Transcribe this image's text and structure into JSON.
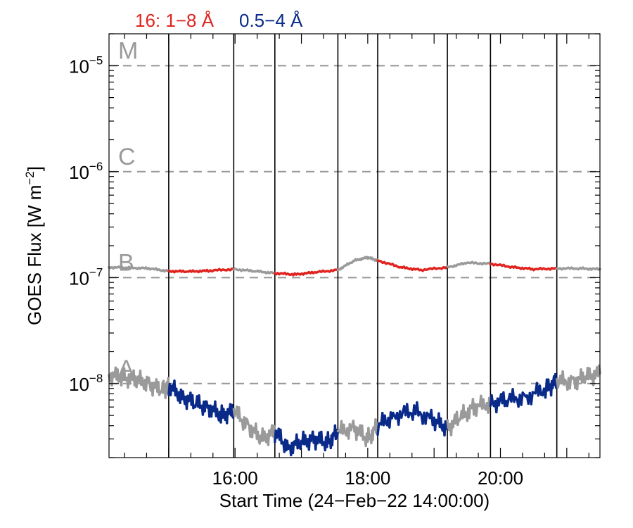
{
  "chart_data": {
    "type": "line",
    "legend": [
      {
        "label": "16: 1−8 Å",
        "color": "#e0231e"
      },
      {
        "label": "0.5−4 Å",
        "color": "#0a2a8a"
      }
    ],
    "xlabel": "Start Time (24−Feb−22 14:00:00)",
    "ylabel_main": "GOES Flux [W m",
    "ylabel_exp": "−2",
    "ylabel_close": "]",
    "y_scale": "log",
    "xlim": [
      14.1,
      21.5
    ],
    "ylim": [
      2e-09,
      2e-05
    ],
    "x_ticks": [
      16,
      18,
      20
    ],
    "x_tick_labels": [
      "16:00",
      "18:00",
      "20:00"
    ],
    "y_ticks": [
      1e-08,
      1e-07,
      1e-06,
      1e-05
    ],
    "y_tick_labels": [
      {
        "base": "10",
        "exp": "−8"
      },
      {
        "base": "10",
        "exp": "−7"
      },
      {
        "base": "10",
        "exp": "−6"
      },
      {
        "base": "10",
        "exp": "−5"
      }
    ],
    "flare_classes": [
      {
        "label": "A",
        "level": 1e-08
      },
      {
        "label": "B",
        "level": 1e-07
      },
      {
        "label": "C",
        "level": 1e-06
      },
      {
        "label": "M",
        "level": 1e-05
      }
    ],
    "vertical_lines": [
      15.0,
      15.98,
      16.6,
      17.55,
      18.15,
      19.2,
      19.85,
      20.85
    ],
    "series": [
      {
        "name": "16: 1−8 Å",
        "x": [
          14.1,
          14.4,
          14.7,
          15.0,
          15.3,
          15.6,
          15.98,
          16.3,
          16.6,
          16.9,
          17.2,
          17.55,
          17.8,
          18.0,
          18.15,
          18.5,
          18.8,
          19.2,
          19.5,
          19.85,
          20.2,
          20.5,
          20.85,
          21.2,
          21.5
        ],
        "values": [
          1.25e-07,
          1.24e-07,
          1.22e-07,
          1.15e-07,
          1.14e-07,
          1.16e-07,
          1.2e-07,
          1.15e-07,
          1.1e-07,
          1.07e-07,
          1.12e-07,
          1.18e-07,
          1.45e-07,
          1.55e-07,
          1.45e-07,
          1.25e-07,
          1.18e-07,
          1.25e-07,
          1.38e-07,
          1.35e-07,
          1.25e-07,
          1.2e-07,
          1.22e-07,
          1.22e-07,
          1.2e-07
        ],
        "highlight_color": "#e0231e",
        "base_color": "#9a9a9a"
      },
      {
        "name": "0.5−4 Å",
        "x": [
          14.1,
          14.3,
          14.5,
          14.7,
          14.9,
          15.0,
          15.2,
          15.4,
          15.6,
          15.8,
          15.98,
          16.2,
          16.4,
          16.6,
          16.8,
          17.0,
          17.2,
          17.4,
          17.55,
          17.8,
          18.0,
          18.15,
          18.4,
          18.7,
          19.0,
          19.2,
          19.4,
          19.6,
          19.85,
          20.1,
          20.4,
          20.7,
          20.85,
          21.1,
          21.3,
          21.5
        ],
        "values": [
          1.2e-08,
          1.15e-08,
          1.1e-08,
          1e-08,
          8.5e-09,
          9.5e-09,
          7.5e-09,
          6.5e-09,
          6e-09,
          5e-09,
          5.5e-09,
          4e-09,
          3e-09,
          3.5e-09,
          2.5e-09,
          2.8e-09,
          3e-09,
          2.8e-09,
          3.5e-09,
          3.8e-09,
          3e-09,
          4e-09,
          5e-09,
          5.5e-09,
          4.5e-09,
          3.8e-09,
          4.8e-09,
          6e-09,
          6.5e-09,
          7e-09,
          7.5e-09,
          9e-09,
          1.05e-08,
          1.05e-08,
          1.15e-08,
          1.25e-08
        ],
        "highlight_color": "#0a2a8a",
        "base_color": "#9a9a9a"
      }
    ],
    "colors": {
      "grid": "#9a9a9a",
      "axis": "#000000",
      "class_label": "#9a9a9a"
    }
  }
}
